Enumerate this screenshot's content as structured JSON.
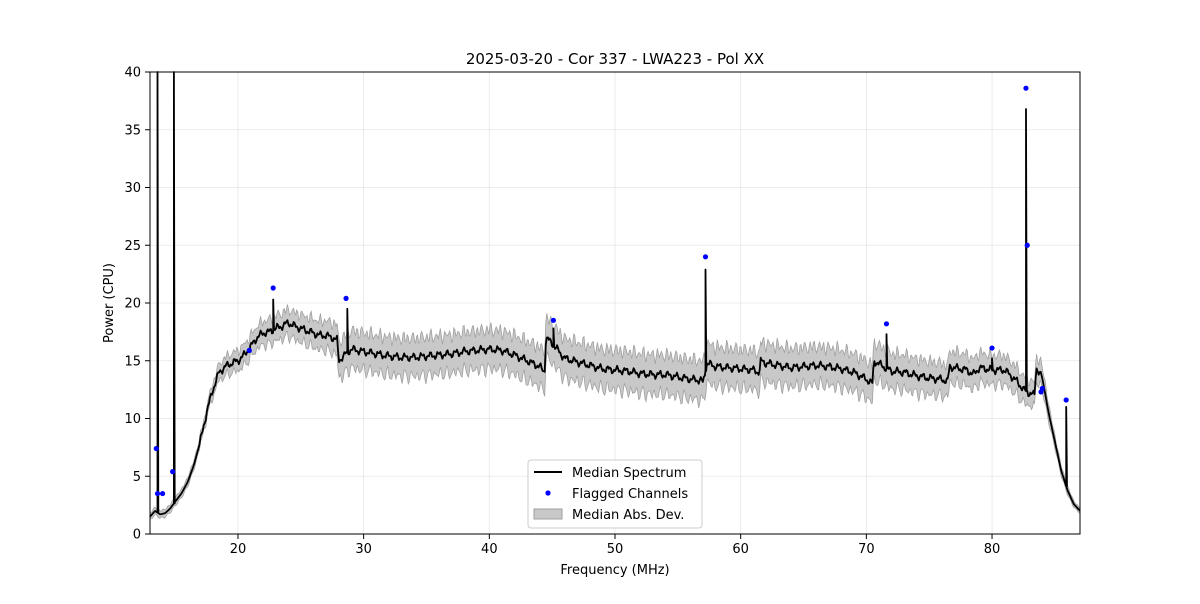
{
  "chart_data": {
    "type": "line",
    "title": "2025-03-20 - Cor 337 - LWA223 - Pol XX",
    "xlabel": "Frequency (MHz)",
    "ylabel": "Power (CPU)",
    "xlim": [
      13.0,
      87.0
    ],
    "ylim": [
      0,
      40
    ],
    "xticks": [
      20,
      30,
      40,
      50,
      60,
      70,
      80
    ],
    "yticks": [
      0,
      5,
      10,
      15,
      20,
      25,
      30,
      35,
      40
    ],
    "grid": true,
    "legend_position": "lower center",
    "legend": {
      "median": "Median Spectrum",
      "flagged": "Flagged Channels",
      "mad": "Median Abs. Dev."
    },
    "colors": {
      "median": "#000000",
      "flagged": "#0000ff",
      "band_fill": "#c8c8c8",
      "band_edge": "#a0a0a0",
      "grid": "#e6e6e6"
    },
    "series": [
      {
        "name": "Median Spectrum",
        "points": [
          [
            13.0,
            1.5
          ],
          [
            13.4,
            2.0
          ],
          [
            13.8,
            1.7
          ],
          [
            14.2,
            1.8
          ],
          [
            14.6,
            2.2
          ],
          [
            15.0,
            2.8
          ],
          [
            15.5,
            3.5
          ],
          [
            16.0,
            4.5
          ],
          [
            16.5,
            6.0
          ],
          [
            17.0,
            8.0
          ],
          [
            17.5,
            10.5
          ],
          [
            18.0,
            12.5
          ],
          [
            18.5,
            14.0
          ],
          [
            19.0,
            14.5
          ],
          [
            19.5,
            14.8
          ],
          [
            20.0,
            15.0
          ],
          [
            20.5,
            15.5
          ],
          [
            21.0,
            16.2
          ],
          [
            21.5,
            17.0
          ],
          [
            22.0,
            17.4
          ],
          [
            22.5,
            17.5
          ],
          [
            23.0,
            17.8
          ],
          [
            23.5,
            18.0
          ],
          [
            24.0,
            18.3
          ],
          [
            24.5,
            18.0
          ],
          [
            25.0,
            17.8
          ],
          [
            25.5,
            17.6
          ],
          [
            26.0,
            17.4
          ],
          [
            26.5,
            17.2
          ],
          [
            27.0,
            17.2
          ],
          [
            27.5,
            17.0
          ],
          [
            27.9,
            16.8
          ],
          [
            28.0,
            15.0
          ],
          [
            28.5,
            15.5
          ],
          [
            29.0,
            16.0
          ],
          [
            30.0,
            15.8
          ],
          [
            31.0,
            15.6
          ],
          [
            32.0,
            15.4
          ],
          [
            33.0,
            15.3
          ],
          [
            34.0,
            15.3
          ],
          [
            35.0,
            15.4
          ],
          [
            36.0,
            15.5
          ],
          [
            37.0,
            15.6
          ],
          [
            38.0,
            15.8
          ],
          [
            39.0,
            15.9
          ],
          [
            40.0,
            16.0
          ],
          [
            41.0,
            15.9
          ],
          [
            42.0,
            15.5
          ],
          [
            43.0,
            15.0
          ],
          [
            44.0,
            14.5
          ],
          [
            44.4,
            14.0
          ],
          [
            44.5,
            17.0
          ],
          [
            45.0,
            16.5
          ],
          [
            46.0,
            15.2
          ],
          [
            47.0,
            14.9
          ],
          [
            48.0,
            14.6
          ],
          [
            49.0,
            14.3
          ],
          [
            50.0,
            14.2
          ],
          [
            51.0,
            14.1
          ],
          [
            52.0,
            13.9
          ],
          [
            53.0,
            13.8
          ],
          [
            54.0,
            13.8
          ],
          [
            55.0,
            13.6
          ],
          [
            56.0,
            13.4
          ],
          [
            56.9,
            13.3
          ],
          [
            57.0,
            13.0
          ],
          [
            57.3,
            14.8
          ],
          [
            58.0,
            14.5
          ],
          [
            59.0,
            14.4
          ],
          [
            60.0,
            14.3
          ],
          [
            61.0,
            14.2
          ],
          [
            61.5,
            14.0
          ],
          [
            61.6,
            15.0
          ],
          [
            62.0,
            14.8
          ],
          [
            63.0,
            14.6
          ],
          [
            64.0,
            14.4
          ],
          [
            65.0,
            14.5
          ],
          [
            66.0,
            14.6
          ],
          [
            67.0,
            14.5
          ],
          [
            68.0,
            14.3
          ],
          [
            69.0,
            14.0
          ],
          [
            70.0,
            13.4
          ],
          [
            70.5,
            13.0
          ],
          [
            70.6,
            15.0
          ],
          [
            71.5,
            14.4
          ],
          [
            72.0,
            14.1
          ],
          [
            73.0,
            14.0
          ],
          [
            74.0,
            13.7
          ],
          [
            75.0,
            13.5
          ],
          [
            76.0,
            13.4
          ],
          [
            76.5,
            13.2
          ],
          [
            76.6,
            14.5
          ],
          [
            77.0,
            14.4
          ],
          [
            78.0,
            14.2
          ],
          [
            78.5,
            13.8
          ],
          [
            79.0,
            14.4
          ],
          [
            80.0,
            14.2
          ],
          [
            81.0,
            14.2
          ],
          [
            82.0,
            13.2
          ],
          [
            82.5,
            12.5
          ],
          [
            83.0,
            12.2
          ],
          [
            83.4,
            12.0
          ],
          [
            83.5,
            14.5
          ],
          [
            84.0,
            13.5
          ],
          [
            84.5,
            10.5
          ],
          [
            85.0,
            8.0
          ],
          [
            85.5,
            5.5
          ],
          [
            86.0,
            3.8
          ],
          [
            86.5,
            2.6
          ],
          [
            87.0,
            2.0
          ]
        ],
        "spikes": [
          [
            13.6,
            40
          ],
          [
            14.9,
            40
          ],
          [
            20.9,
            16.0
          ],
          [
            22.8,
            20.3
          ],
          [
            28.7,
            19.5
          ],
          [
            45.1,
            17.8
          ],
          [
            57.2,
            22.9
          ],
          [
            71.6,
            17.3
          ],
          [
            80.0,
            15.2
          ],
          [
            82.7,
            36.8
          ],
          [
            85.9,
            11.0
          ]
        ]
      },
      {
        "name": "Flagged Channels",
        "x": [
          13.5,
          13.6,
          14.0,
          14.8,
          20.9,
          22.8,
          28.6,
          45.1,
          57.2,
          71.6,
          80.0,
          82.7,
          82.8,
          83.9,
          84.0,
          85.9
        ],
        "y": [
          7.4,
          3.5,
          3.5,
          5.4,
          15.9,
          21.3,
          20.4,
          18.5,
          24.0,
          18.2,
          16.1,
          38.6,
          25.0,
          12.3,
          12.6,
          11.6
        ]
      },
      {
        "name": "Median Abs. Dev.",
        "halfwidth": [
          [
            13.0,
            0.3
          ],
          [
            17.0,
            0.4
          ],
          [
            19.0,
            0.8
          ],
          [
            23.0,
            1.1
          ],
          [
            27.9,
            1.3
          ],
          [
            28.0,
            1.6
          ],
          [
            44.0,
            1.7
          ],
          [
            56.9,
            1.7
          ],
          [
            70.0,
            1.6
          ],
          [
            82.0,
            1.2
          ],
          [
            84.0,
            1.0
          ],
          [
            85.0,
            0.5
          ],
          [
            87.0,
            0.2
          ]
        ]
      }
    ]
  }
}
